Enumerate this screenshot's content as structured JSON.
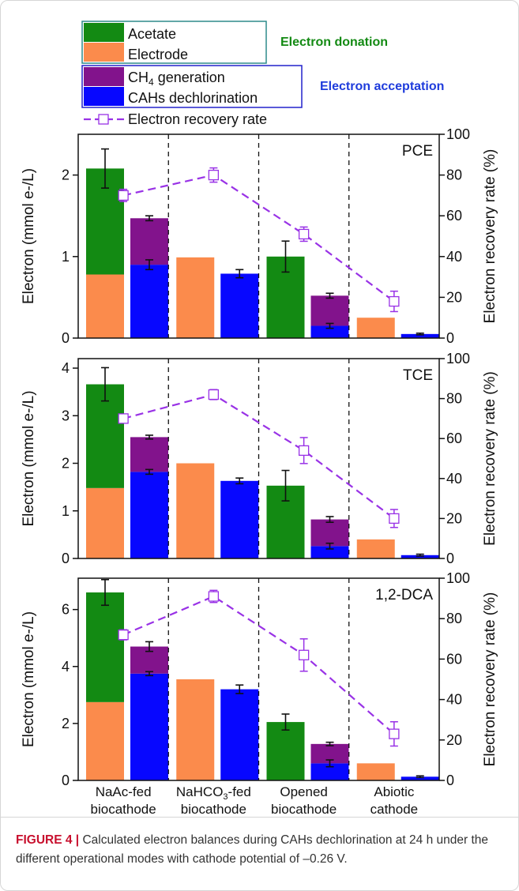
{
  "legend": {
    "donation_title": "Electron donation",
    "acceptation_title": "Electron acceptation",
    "items": [
      {
        "key": "acetate",
        "label": "Acetate",
        "color": "#138a13"
      },
      {
        "key": "electrode",
        "label": "Electrode",
        "color": "#fb8b4c"
      },
      {
        "key": "ch4",
        "label": "CH4 generation",
        "color": "#82138c"
      },
      {
        "key": "cahs",
        "label": "CAHs dechlorination",
        "color": "#0707ff"
      }
    ],
    "recovery_label": "Electron recovery rate",
    "recovery_color": "#9932e6",
    "donation_title_color": "#138a13",
    "acceptation_title_color": "#1f3cdc",
    "donation_box_color": "#2e8b8b",
    "acceptation_box_color": "#2222cc"
  },
  "caption": {
    "label": "FIGURE 4 |",
    "text": " Calculated electron balances during CAHs dechlorination at 24 h under the different operational modes with cathode potential of –0.26 V."
  },
  "chart_data": [
    {
      "type": "bar",
      "title": "PCE",
      "categories": [
        "NaAc-fed biocathode",
        "NaHCO3-fed biocathode",
        "Opened biocathode",
        "Abiotic cathode"
      ],
      "ylabel": "Electron (mmol e-/L)",
      "y2label": "Electron recovery rate (%)",
      "ylim": [
        0,
        2.5
      ],
      "yticks": [
        0,
        1,
        2
      ],
      "y2lim": [
        0,
        100
      ],
      "y2ticks": [
        0,
        20,
        40,
        60,
        80,
        100
      ],
      "donation": [
        {
          "acetate": 1.3,
          "electrode": 0.78,
          "error": 0.24
        },
        {
          "acetate": 0,
          "electrode": 0.99,
          "error": null
        },
        {
          "acetate": 1.0,
          "electrode": 0,
          "error": 0.19
        },
        {
          "acetate": 0,
          "electrode": 0.25,
          "error": null
        }
      ],
      "acceptation": [
        {
          "cahs": 0.9,
          "ch4": 0.57,
          "cahs_error": 0.06,
          "error": 0.03
        },
        {
          "cahs": 0.79,
          "ch4": 0,
          "cahs_error": 0.05,
          "error": null
        },
        {
          "cahs": 0.15,
          "ch4": 0.37,
          "cahs_error": 0.03,
          "error": 0.03
        },
        {
          "cahs": 0.05,
          "ch4": 0,
          "cahs_error": 0.01,
          "error": null
        }
      ],
      "recovery": {
        "values": [
          70,
          80,
          51,
          18
        ],
        "errors": [
          3,
          3.5,
          3.5,
          5
        ]
      }
    },
    {
      "type": "bar",
      "title": "TCE",
      "categories": [
        "NaAc-fed biocathode",
        "NaHCO3-fed biocathode",
        "Opened biocathode",
        "Abiotic cathode"
      ],
      "ylabel": "Electron (mmol e-/L)",
      "y2label": "Electron recovery rate (%)",
      "ylim": [
        0,
        4.2
      ],
      "yticks": [
        0,
        1,
        2,
        3,
        4
      ],
      "y2lim": [
        0,
        100
      ],
      "y2ticks": [
        0,
        20,
        40,
        60,
        80,
        100
      ],
      "donation": [
        {
          "acetate": 2.18,
          "electrode": 1.48,
          "error": 0.35
        },
        {
          "acetate": 0,
          "electrode": 2.0,
          "error": null
        },
        {
          "acetate": 1.53,
          "electrode": 0,
          "error": 0.32
        },
        {
          "acetate": 0,
          "electrode": 0.4,
          "error": null
        }
      ],
      "acceptation": [
        {
          "cahs": 1.82,
          "ch4": 0.73,
          "cahs_error": 0.05,
          "error": 0.04
        },
        {
          "cahs": 1.63,
          "ch4": 0,
          "cahs_error": 0.06,
          "error": null
        },
        {
          "cahs": 0.26,
          "ch4": 0.56,
          "cahs_error": 0.06,
          "error": 0.06
        },
        {
          "cahs": 0.07,
          "ch4": 0,
          "cahs_error": 0.02,
          "error": null
        }
      ],
      "recovery": {
        "values": [
          70,
          82,
          54,
          20
        ],
        "errors": [
          2,
          2.5,
          6.5,
          4.5
        ]
      }
    },
    {
      "type": "bar",
      "title": "1,2-DCA",
      "categories": [
        "NaAc-fed biocathode",
        "NaHCO3-fed biocathode",
        "Opened biocathode",
        "Abiotic cathode"
      ],
      "ylabel": "Electron (mmol e-/L)",
      "y2label": "Electron recovery rate (%)",
      "ylim": [
        0,
        7.1
      ],
      "yticks": [
        0,
        2,
        4,
        6
      ],
      "y2lim": [
        0,
        100
      ],
      "y2ticks": [
        0,
        20,
        40,
        60,
        80,
        100
      ],
      "donation": [
        {
          "acetate": 3.85,
          "electrode": 2.75,
          "error": 0.45
        },
        {
          "acetate": 0,
          "electrode": 3.55,
          "error": null
        },
        {
          "acetate": 2.05,
          "electrode": 0,
          "error": 0.28
        },
        {
          "acetate": 0,
          "electrode": 0.6,
          "error": null
        }
      ],
      "acceptation": [
        {
          "cahs": 3.75,
          "ch4": 0.95,
          "cahs_error": 0.07,
          "error": 0.17
        },
        {
          "cahs": 3.2,
          "ch4": 0,
          "cahs_error": 0.15,
          "error": null
        },
        {
          "cahs": 0.6,
          "ch4": 0.68,
          "cahs_error": 0.12,
          "error": 0.06
        },
        {
          "cahs": 0.13,
          "ch4": 0,
          "cahs_error": 0.03,
          "error": null
        }
      ],
      "recovery": {
        "values": [
          72,
          91,
          62,
          23
        ],
        "errors": [
          2.5,
          3,
          8,
          6
        ]
      }
    }
  ],
  "xaxis": {
    "labels": [
      [
        "NaAc-fed",
        "biocathode"
      ],
      [
        "NaHCO3-fed",
        "biocathode"
      ],
      [
        "Opened",
        "biocathode"
      ],
      [
        "Abiotic",
        "cathode"
      ]
    ]
  }
}
